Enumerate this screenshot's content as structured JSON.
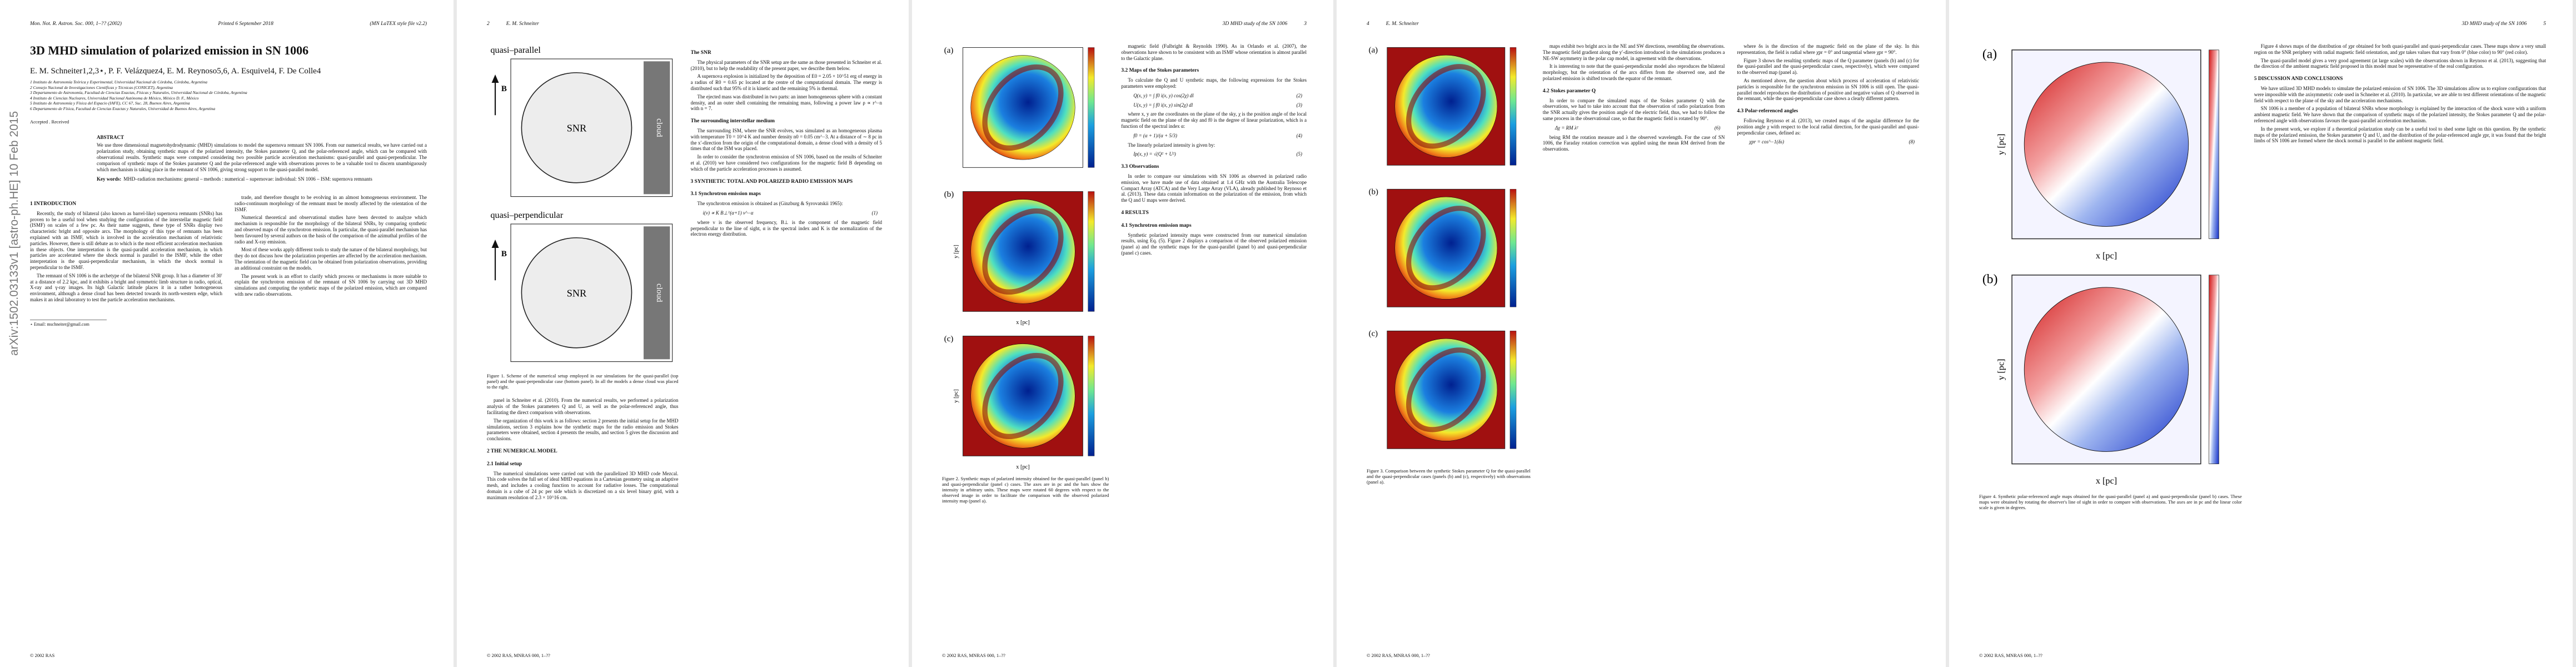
{
  "arxiv_stamp": "arXiv:1502.03133v1  [astro-ph.HE]  10 Feb 2015",
  "pages": [
    {
      "header": [
        "Mon. Not. R. Astron. Soc. 000, 1–?? (2002)",
        "Printed 6 September 2018",
        "(MN LaTEX style file v2.2)"
      ],
      "title": "3D MHD simulation of polarized emission in SN 1006",
      "authors": "E. M. Schneiter1,2,3⋆, P. F. Velázquez4, E. M. Reynoso5,6, A. Esquivel4, F. De Colle4",
      "affiliations": [
        "1 Instituto de Astronomía Teórica y Experimental, Universidad Nacional de Córdoba, Córdoba, Argentina",
        "2 Consejo Nacional de Investigaciones Científicas y Técnicas (CONICET), Argentina",
        "3 Departamento de Astronomía, Facultad de Ciencias Exactas, Físicas y Naturales, Universidad Nacional de Córdoba, Argentina",
        "4 Instituto de Ciencias Nucleares, Universidad Nacional Autónoma de México, México D. F., México",
        "5 Instituto de Astronomía y Física del Espacio (IAFE), CC 67, Suc. 28, Buenos Aires, Argentina",
        "6 Departamento de Física, Facultad de Ciencias Exactas y Naturales, Universidad de Buenos Aires, Argentina"
      ],
      "received": "Accepted . Received",
      "abstract": {
        "heading": "ABSTRACT",
        "text": "We use three dimensional magnetohydrodynamic (MHD) simulations to model the supernova remnant SN 1006. From our numerical results, we have carried out a polarization study, obtaining synthetic maps of the polarized intensity, the Stokes parameter Q, and the polar-referenced angle, which can be compared with observational results. Synthetic maps were computed considering two possible particle acceleration mechanisms: quasi-parallel and quasi-perpendicular. The comparison of synthetic maps of the Stokes parameter Q and the polar-referenced angle with observations proves to be a valuable tool to discern unambiguously which mechanism is taking place in the remnant of SN 1006, giving strong support to the quasi-parallel model.",
        "keywords_label": "Key words:",
        "keywords": "MHD–radiation mechanisms: general – methods : numerical – supernovae: individual: SN 1006 – ISM: supernova remnants"
      },
      "columns": [
        [
          {
            "h": "1 INTRODUCTION"
          },
          {
            "p": "Recently, the study of bilateral (also known as barrel-like) supernova remnants (SNRs) has proven to be a useful tool when studying the configuration of the interstellar magnetic field (ISMF) on scales of a few pc. As their name suggests, these type of SNRs display two characteristic bright and opposite arcs. The morphology of this type of remnants has been explained with an ISMF, which is involved in the acceleration mechanism of relativistic particles. However, there is still debate as to which is the most efficient acceleration mechanism in these objects. One interpretation is the quasi-parallel acceleration mechanism, in which particles are accelerated where the shock normal is parallel to the ISMF, while the other interpretation is the quasi-perpendicular mechanism, in which the shock normal is perpendicular to the ISMF."
          },
          {
            "p": "The remnant of SN 1006 is the archetype of the bilateral SNR group. It has a diameter of 30′ at a distance of 2.2 kpc, and it exhibits a bright and symmetric limb structure in radio, optical, X-ray and γ-ray images. Its high Galactic latitude places it in a rather homogeneous environment, although a dense cloud has been detected towards its north-western edge, which makes it an ideal laboratory to test the particle acceleration mechanisms."
          },
          {
            "note": "⋆ Email: mschneiter@gmail.com"
          }
        ],
        [
          {
            "p": "trade, and therefore thought to be evolving in an almost homogeneous environment. The radio-continuum morphology of the remnant must be mostly affected by the orientation of the ISMF."
          },
          {
            "p": "Numerical theoretical and observational studies have been devoted to analyze which mechanism is responsible for the morphology of the bilateral SNRs, by comparing synthetic and observed maps of the synchrotron emission. In particular, the quasi-parallel mechanism has been favoured by several authors on the basis of the comparison of the azimuthal profiles of the radio and X-ray emission."
          },
          {
            "p": "Most of these works apply different tools to study the nature of the bilateral morphology, but they do not discuss how the polarization properties are affected by the acceleration mechanism. The orientation of the magnetic field can be obtained from polarization observations, providing an additional constraint on the models."
          },
          {
            "p": "The present work is an effort to clarify which process or mechanisms is more suitable to explain the synchrotron emission of the remnant of SN 1006 by carrying out 3D MHD simulations and computing the synthetic maps of the polarized emission, which are compared with new radio observations."
          }
        ]
      ],
      "footer": "© 2002 RAS"
    },
    {
      "header": [
        "2",
        "E. M. Schneiter"
      ],
      "columns": [
        [
          {
            "figure": {
              "panels": [
                {
                  "label": "quasi–parallel",
                  "snr": "SNR",
                  "cloud": "cloud",
                  "b": "B"
                },
                {
                  "label": "quasi–perpendicular",
                  "snr": "SNR",
                  "cloud": "cloud",
                  "b": "B"
                }
              ],
              "caption": "Figure 1. Scheme of the numerical setup employed in our simulations for the quasi-parallel (top panel) and the quasi-perpendicular case (bottom panel). In all the models a dense cloud was placed to the right."
            }
          },
          {
            "p": "panel in Schneiter et al. (2010). From the numerical results, we performed a polarization analysis of the Stokes parameters Q and U, as well as the polar-referenced angle, thus facilitating the direct comparison with observations."
          },
          {
            "p": "The organization of this work is as follows: section 2 presents the initial setup for the MHD simulations, section 3 explains how the synthetic maps for the radio emission and Stokes parameters were obtained, section 4 presents the results, and section 5 gives the discussion and conclusions."
          },
          {
            "h": "2 THE NUMERICAL MODEL"
          },
          {
            "h": "2.1 Initial setup"
          },
          {
            "p": "The numerical simulations were carried out with the parallelized 3D MHD code Mezcal. This code solves the full set of ideal MHD equations in a Cartesian geometry using an adaptive mesh, and includes a cooling function to account for radiative losses. The computational domain is a cube of 24 pc per side which is discretized on a six level binary grid, with a maximum resolution of 2.3 × 10^16 cm."
          }
        ],
        [
          {
            "h": "The SNR"
          },
          {
            "p": "The physical parameters of the SNR setup are the same as those presented in Schneiter et al. (2010), but to help the readability of the present paper, we describe them below."
          },
          {
            "p": "A supernova explosion is initialized by the deposition of E0 = 2.05 × 10^51 erg of energy in a radius of R0 = 0.65 pc located at the centre of the computational domain. The energy is distributed such that 95% of it is kinetic and the remaining 5% is thermal."
          },
          {
            "p": "The ejected mass was distributed in two parts: an inner homogeneous sphere with a constant density, and an outer shell containing the remaining mass, following a power law ρ ∝ r^−n with n = 7."
          },
          {
            "h": "The surrounding interstellar medium"
          },
          {
            "p": "The surrounding ISM, where the SNR evolves, was simulated as an homogeneous plasma with temperature T0 = 10^4 K and number density n0 = 0.05 cm^−3. At a distance of ∼ 8 pc in the x′-direction from the origin of the computational domain, a dense cloud with a density of 5 times that of the ISM was placed."
          },
          {
            "p": "In order to consider the synchrotron emission of SN 1006, based on the results of Schneiter et al. (2010) we have considered two configurations for the magnetic field B depending on which of the particle acceleration processes is assumed."
          },
          {
            "h": "3 SYNTHETIC TOTAL AND POLARIZED RADIO EMISSION MAPS"
          },
          {
            "h": "3.1 Synchrotron emission maps"
          },
          {
            "p": "The synchrotron emission is obtained as (Ginzburg & Syrovatskii 1965):"
          },
          {
            "eq": "i(ν) ∝ K B⊥^(α+1) ν^−α",
            "n": "(1)"
          },
          {
            "p": "where ν is the observed frequency, B⊥ is the component of the magnetic field perpendicular to the line of sight, α is the spectral index and K is the normalization of the electron energy distribution."
          }
        ]
      ],
      "footer": "© 2002 RAS, MNRAS 000, 1–??"
    },
    {
      "header": [
        "3D MHD study of the SN 1006",
        "3"
      ],
      "columns": [
        [
          {
            "figure": {
              "panels": [
                {
                  "label": "(a)"
                },
                {
                  "label": "(b)",
                  "xlabel": "x [pc]",
                  "ylabel": "y [pc]"
                },
                {
                  "label": "(c)",
                  "xlabel": "x [pc]",
                  "ylabel": "y [pc]"
                }
              ],
              "caption": "Figure 2. Synthetic maps of polarized intensity obtained for the quasi-parallel (panel b) and quasi-perpendicular (panel c) cases. The axes are in pc and the bars show the intensity in arbitrary units. These maps were rotated 60 degrees with respect to the observed image in order to facilitate the comparison with the observed polarized intensity map (panel a)."
            }
          }
        ],
        [
          {
            "p": "magnetic field (Fulbright & Reynolds 1990). As in Orlando et al. (2007), the observations have shown to be consistent with an ISMF whose orientation is almost parallel to the Galactic plane."
          },
          {
            "h": "3.2 Maps of the Stokes parameters"
          },
          {
            "p": "To calculate the Q and U synthetic maps, the following expressions for the Stokes parameters were employed:"
          },
          {
            "eq": "Q(x, y) = ∫ f0 i(x, y) cos(2χ) dl",
            "n": "(2)"
          },
          {
            "eq": "U(x, y) = ∫ f0 i(x, y) sin(2χ) dl",
            "n": "(3)"
          },
          {
            "p": "where x, y are the coordinates on the plane of the sky, χ is the position angle of the local magnetic field on the plane of the sky and f0 is the degree of linear polarization, which is a function of the spectral index α:"
          },
          {
            "eq": "f0 = (α + 1)/(α + 5/3)",
            "n": "(4)"
          },
          {
            "p": "The linearly polarized intensity is given by:"
          },
          {
            "eq": "Ip(x, y) = √(Q² + U²)",
            "n": "(5)"
          },
          {
            "h": "3.3 Observations"
          },
          {
            "p": "In order to compare our simulations with SN 1006 as observed in polarized radio emission, we have made use of data obtained at 1.4 GHz with the Australia Telescope Compact Array (ATCA) and the Very Large Array (VLA), already published by Reynoso et al. (2013). These data contain information on the polarization of the emission, from which the Q and U maps were derived."
          },
          {
            "h": "4 RESULTS"
          },
          {
            "h": "4.1 Synchrotron emission maps"
          },
          {
            "p": "Synthetic polarized intensity maps were constructed from our numerical simulation results, using Eq. (5). Figure 2 displays a comparison of the observed polarized emission (panel a) and the synthetic maps for the quasi-parallel (panel b) and quasi-perpendicular (panel c) cases."
          }
        ]
      ],
      "footer": "© 2002 RAS, MNRAS 000, 1–??"
    },
    {
      "header": [
        "4",
        "E. M. Schneiter"
      ],
      "columns": [
        [
          {
            "figure": {
              "panels": [
                {
                  "label": "(a)"
                },
                {
                  "label": "(b)"
                },
                {
                  "label": "(c)"
                }
              ],
              "caption": "Figure 3. Comparison between the synthetic Stokes parameter Q for the quasi-parallel and the quasi-perpendicular cases (panels (b) and (c), respectively) with observations (panel a)."
            }
          }
        ],
        [
          {
            "p": "maps exhibit two bright arcs in the NE and SW directions, resembling the observations. The magnetic field gradient along the y′-direction introduced in the simulations produces a NE-SW asymmetry in the polar cap model, in agreement with the observations."
          },
          {
            "p": "It is interesting to note that the quasi-perpendicular model also reproduces the bilateral morphology, but the orientation of the arcs differs from the observed one, and the polarized emission is shifted towards the equator of the remnant."
          },
          {
            "h": "4.2 Stokes parameter Q"
          },
          {
            "p": "In order to compare the simulated maps of the Stokes parameter Q with the observations, we had to take into account that the observation of radio polarization from the SNR actually gives the position angle of the electric field, thus, we had to follow the same process in the observational case, so that the magnetic field is rotated by 90°."
          },
          {
            "eq": "Δχ = RM λ²",
            "n": "(6)"
          },
          {
            "p": "being RM the rotation measure and λ the observed wavelength. For the case of SN 1006, the Faraday rotation correction was applied using the mean RM derived from the observations."
          }
        ],
        [
          {
            "p": "where δs is the direction of the magnetic field on the plane of the sky. In this representation, the field is radial where χpr = 0° and tangential where χpr = 90°."
          },
          {
            "p": "Figure 3 shows the resulting synthetic maps of the Q parameter (panels (b) and (c) for the quasi-parallel and the quasi-perpendicular cases, respectively), which were compared to the observed map (panel a)."
          },
          {
            "p": "As mentioned above, the question about which process of acceleration of relativistic particles is responsible for the synchrotron emission in SN 1006 is still open. The quasi-parallel model reproduces the distribution of positive and negative values of Q observed in the remnant, while the quasi-perpendicular case shows a clearly different pattern."
          },
          {
            "h": "4.3 Polar-referenced angles"
          },
          {
            "p": "Following Reynoso et al. (2013), we created maps of the angular difference for the position angle χ with respect to the local radial direction, for the quasi-parallel and quasi-perpendicular cases, defined as:"
          },
          {
            "eq": "χpr = cos^−1(δs)",
            "n": "(8)"
          }
        ]
      ],
      "footer": "© 2002 RAS, MNRAS 000, 1–??"
    },
    {
      "header": [
        "3D MHD study of the SN 1006",
        "5"
      ],
      "columns": [
        [
          {
            "figure": {
              "panels": [
                {
                  "label": "(a)",
                  "xlabel": "x [pc]",
                  "ylabel": "y [pc]"
                },
                {
                  "label": "(b)",
                  "xlabel": "x [pc]",
                  "ylabel": "y [pc]"
                }
              ],
              "caption": "Figure 4. Synthetic polar-referenced angle maps obtained for the quasi-parallel (panel a) and quasi-perpendicular (panel b) cases. These maps were obtained by rotating the observer's line of sight in order to compare with observations. The axes are in pc and the linear color scale is given in degrees."
            }
          }
        ],
        [
          {
            "p": "Figure 4 shows maps of the distribution of χpr obtained for both quasi-parallel and quasi-perpendicular cases. These maps show a very small region on the SNR periphery with radial magnetic field orientation, and χpr takes values that vary from 0° (blue color) to 90° (red color)."
          },
          {
            "p": "The quasi-parallel model gives a very good agreement (at large scales) with the observations shown in Reynoso et al. (2013), suggesting that the direction of the ambient magnetic field proposed in this model must be representative of the real configuration."
          },
          {
            "h": "5 DISCUSSION AND CONCLUSIONS"
          },
          {
            "p": "We have utilized 3D MHD models to simulate the polarized emission of SN 1006. The 3D simulations allow us to explore configurations that were impossible with the axisymmetric code used in Schneiter et al. (2010). In particular, we are able to test different orientations of the magnetic field with respect to the plane of the sky and the acceleration mechanisms."
          },
          {
            "p": "SN 1006 is a member of a population of bilateral SNRs whose morphology is explained by the interaction of the shock wave with a uniform ambient magnetic field. We have shown that the comparison of synthetic maps of the polarized intensity, the Stokes parameter Q and the polar-referenced angle with observations favours the quasi-parallel acceleration mechanism."
          },
          {
            "p": "In the present work, we explore if a theoretical polarization study can be a useful tool to shed some light on this question. By the synthetic maps of the polarized emission, the Stokes parameter Q and U, and the distribution of the polar-referenced angle χpr, it was found that the bright limbs of SN 1006 are formed where the shock normal is parallel to the ambient magnetic field."
          }
        ]
      ],
      "footer": "© 2002 RAS, MNRAS 000, 1–??"
    }
  ]
}
